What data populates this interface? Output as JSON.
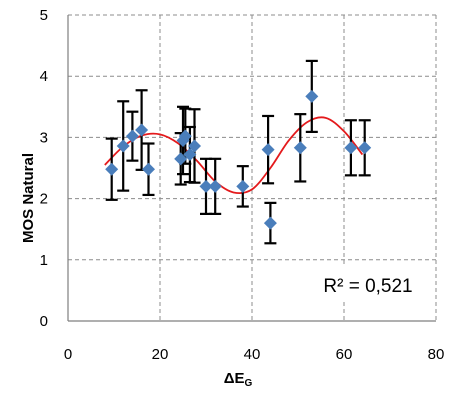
{
  "chart_data": {
    "type": "scatter",
    "title": "",
    "xlabel_main": "ΔE",
    "xlabel_sub": "G",
    "ylabel": "MOS Natural",
    "xlim": [
      0,
      80
    ],
    "ylim": [
      0,
      5
    ],
    "x_ticks": [
      "0",
      "20",
      "40",
      "60",
      "80"
    ],
    "y_ticks": [
      "0",
      "1",
      "2",
      "3",
      "4",
      "5"
    ],
    "grid": true,
    "legend": "none",
    "annotation": "R² = 0,521",
    "marker_color": "#4a7ebb",
    "trend_color": "#e41a1c",
    "points": [
      {
        "x": 9.5,
        "y": 2.48,
        "err": 0.5
      },
      {
        "x": 12,
        "y": 2.86,
        "err": 0.73
      },
      {
        "x": 14,
        "y": 3.02,
        "err": 0.4
      },
      {
        "x": 16,
        "y": 3.12,
        "err": 0.65
      },
      {
        "x": 17.5,
        "y": 2.48,
        "err": 0.42
      },
      {
        "x": 24.5,
        "y": 2.65,
        "err": 0.42
      },
      {
        "x": 25,
        "y": 2.95,
        "err": 0.55
      },
      {
        "x": 25.5,
        "y": 3.02,
        "err": 0.45
      },
      {
        "x": 26.5,
        "y": 2.72,
        "err": 0.45
      },
      {
        "x": 27.5,
        "y": 2.86,
        "err": 0.6
      },
      {
        "x": 30,
        "y": 2.2,
        "err": 0.45
      },
      {
        "x": 32,
        "y": 2.2,
        "err": 0.45
      },
      {
        "x": 38,
        "y": 2.2,
        "err": 0.33
      },
      {
        "x": 43.5,
        "y": 2.8,
        "err": 0.55
      },
      {
        "x": 44,
        "y": 1.6,
        "err": 0.33
      },
      {
        "x": 50.5,
        "y": 2.83,
        "err": 0.55
      },
      {
        "x": 53,
        "y": 3.67,
        "err": 0.58
      },
      {
        "x": 61.5,
        "y": 2.83,
        "err": 0.45
      },
      {
        "x": 64.5,
        "y": 2.83,
        "err": 0.45
      }
    ],
    "trendline": {
      "x": [
        8,
        12,
        16,
        20,
        24,
        28,
        32,
        36,
        40,
        44,
        48,
        52,
        56,
        60,
        64
      ],
      "y": [
        2.55,
        2.85,
        3.03,
        3.05,
        2.9,
        2.62,
        2.28,
        2.1,
        2.15,
        2.5,
        2.95,
        3.25,
        3.32,
        3.1,
        2.72
      ]
    }
  }
}
